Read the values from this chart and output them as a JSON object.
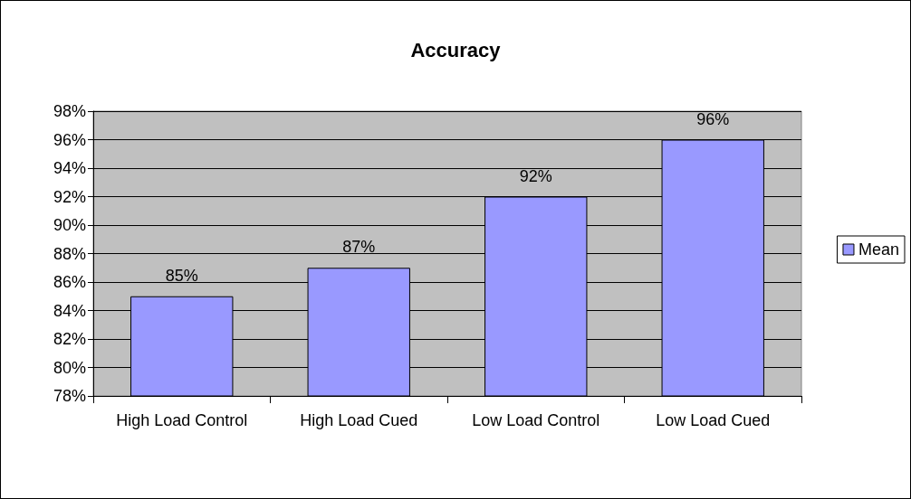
{
  "chart_data": {
    "type": "bar",
    "title": "Accuracy",
    "categories": [
      "High Load Control",
      "High Load Cued",
      "Low Load Control",
      "Low Load Cued"
    ],
    "series": [
      {
        "name": "Mean",
        "color": "#9999ff",
        "values": [
          85,
          87,
          92,
          96
        ],
        "value_labels": [
          "85%",
          "87%",
          "92%",
          "96%"
        ]
      }
    ],
    "ylim": [
      78,
      98
    ],
    "yticks": [
      {
        "value": 78,
        "label": "78%"
      },
      {
        "value": 80,
        "label": "80%"
      },
      {
        "value": 82,
        "label": "82%"
      },
      {
        "value": 84,
        "label": "84%"
      },
      {
        "value": 86,
        "label": "86%"
      },
      {
        "value": 88,
        "label": "88%"
      },
      {
        "value": 90,
        "label": "90%"
      },
      {
        "value": 92,
        "label": "92%"
      },
      {
        "value": 94,
        "label": "94%"
      },
      {
        "value": 96,
        "label": "96%"
      },
      {
        "value": 98,
        "label": "98%"
      }
    ],
    "grid": "y",
    "legend": "right"
  }
}
